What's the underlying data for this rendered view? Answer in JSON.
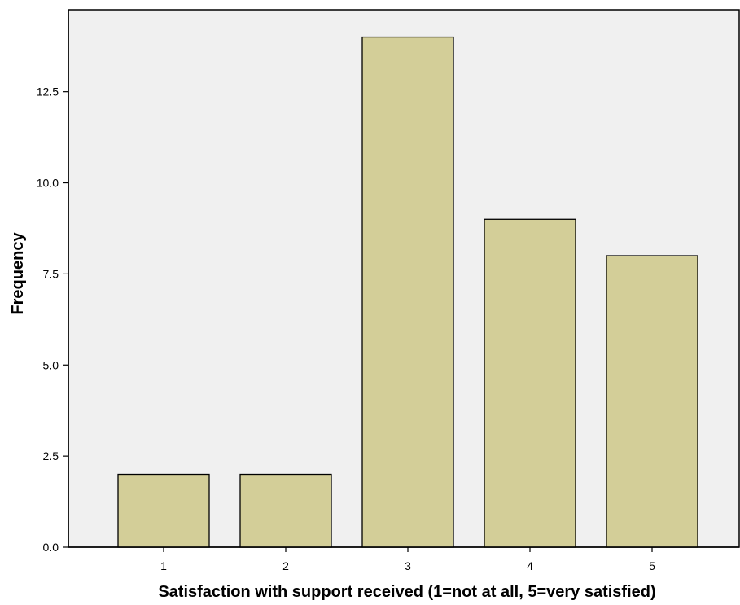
{
  "colors": {
    "plot_background": "#f0f0f0",
    "bar_fill": "#d3ce98",
    "bar_stroke": "#000000"
  },
  "chart_data": {
    "type": "bar",
    "categories": [
      "1",
      "2",
      "3",
      "4",
      "5"
    ],
    "values": [
      2,
      2,
      14,
      9,
      8
    ],
    "xlabel": "Satisfaction with support received (1=not at all, 5=very satisfied)",
    "ylabel": "Frequency",
    "ylim": [
      0,
      14.75
    ],
    "yticks": [
      "0.0",
      "2.5",
      "5.0",
      "7.5",
      "10.0",
      "12.5"
    ],
    "grid": false,
    "legend": "none"
  }
}
